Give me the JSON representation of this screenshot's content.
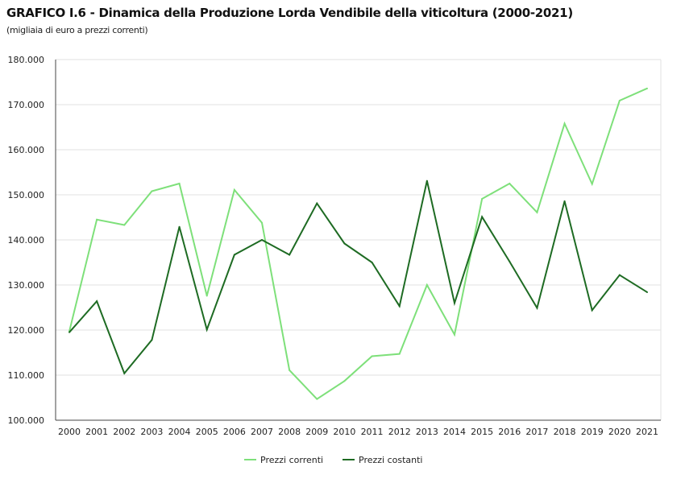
{
  "chart_data": {
    "type": "line",
    "title": "GRAFICO I.6 - Dinamica della Produzione Lorda Vendibile della viticoltura (2000-2021)",
    "subtitle": "(migliaia di euro a prezzi correnti)",
    "xlabel": "",
    "ylabel": "",
    "ylim": [
      100000,
      180000
    ],
    "yticks": [
      100000,
      110000,
      120000,
      130000,
      140000,
      150000,
      160000,
      170000,
      180000
    ],
    "ytick_labels": [
      "100.000",
      "110.000",
      "120.000",
      "130.000",
      "140.000",
      "150.000",
      "160.000",
      "170.000",
      "180.000"
    ],
    "categories": [
      "2000",
      "2001",
      "2002",
      "2003",
      "2004",
      "2005",
      "2006",
      "2007",
      "2008",
      "2009",
      "2010",
      "2011",
      "2012",
      "2013",
      "2014",
      "2015",
      "2016",
      "2017",
      "2018",
      "2019",
      "2020",
      "2021"
    ],
    "grid": "horizontal",
    "legend": "bottom",
    "series": [
      {
        "name": "Prezzi correnti",
        "color": "#7ee07a",
        "values": [
          119700,
          144500,
          143300,
          150800,
          152500,
          127600,
          151100,
          143800,
          111100,
          104700,
          108700,
          114200,
          114700,
          130000,
          119000,
          149100,
          152500,
          146100,
          165800,
          152400,
          170900,
          173600
        ]
      },
      {
        "name": "Prezzi costanti",
        "color": "#1e6b23",
        "values": [
          119500,
          126400,
          110400,
          117800,
          142900,
          120100,
          136700,
          140000,
          136700,
          148100,
          139200,
          135000,
          125300,
          153100,
          126000,
          145100,
          135200,
          124900,
          148600,
          124400,
          132200,
          128400
        ]
      }
    ]
  }
}
